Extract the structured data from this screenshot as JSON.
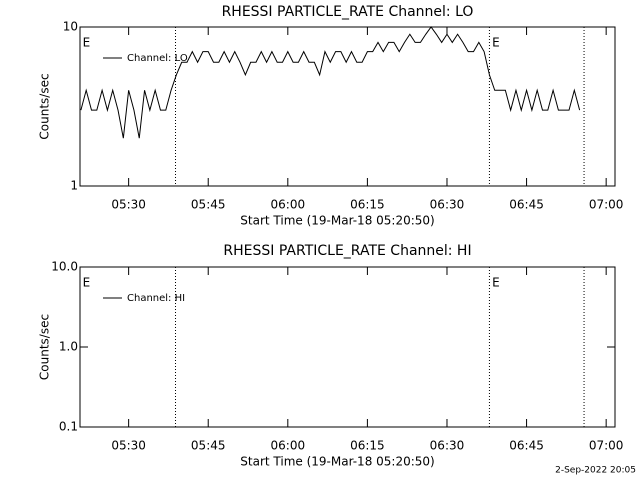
{
  "chart_data": [
    {
      "type": "line",
      "title": "RHESSI PARTICLE_RATE Channel: LO",
      "xlabel": "Start Time (19-Mar-18 05:20:50)",
      "ylabel": "Counts/sec",
      "log_y": true,
      "ylim": [
        1,
        10
      ],
      "yticks": [
        1,
        10
      ],
      "xlim": [
        "05:20:50",
        "07:01:40"
      ],
      "xticks": [
        "05:30",
        "05:45",
        "06:00",
        "06:15",
        "06:30",
        "06:45",
        "07:00"
      ],
      "vlines": [
        "05:38:50",
        "06:38:00",
        "06:55:50"
      ],
      "annotations": [
        {
          "text": "E",
          "x": "05:21:20"
        },
        {
          "text": "E",
          "x": "06:38:30"
        }
      ],
      "legend": "upper left",
      "x": [
        "05:21",
        "05:22",
        "05:23",
        "05:24",
        "05:25",
        "05:26",
        "05:27",
        "05:28",
        "05:29",
        "05:30",
        "05:31",
        "05:32",
        "05:33",
        "05:34",
        "05:35",
        "05:36",
        "05:37",
        "05:38",
        "05:39",
        "05:40",
        "05:41",
        "05:42",
        "05:43",
        "05:44",
        "05:45",
        "05:46",
        "05:47",
        "05:48",
        "05:49",
        "05:50",
        "05:51",
        "05:52",
        "05:53",
        "05:54",
        "05:55",
        "05:56",
        "05:57",
        "05:58",
        "05:59",
        "06:00",
        "06:01",
        "06:02",
        "06:03",
        "06:04",
        "06:05",
        "06:06",
        "06:07",
        "06:08",
        "06:09",
        "06:10",
        "06:11",
        "06:12",
        "06:13",
        "06:14",
        "06:15",
        "06:16",
        "06:17",
        "06:18",
        "06:19",
        "06:20",
        "06:21",
        "06:22",
        "06:23",
        "06:24",
        "06:25",
        "06:26",
        "06:27",
        "06:28",
        "06:29",
        "06:30",
        "06:31",
        "06:32",
        "06:33",
        "06:34",
        "06:35",
        "06:36",
        "06:37",
        "06:38",
        "06:39",
        "06:40",
        "06:41",
        "06:42",
        "06:43",
        "06:44",
        "06:45",
        "06:46",
        "06:47",
        "06:48",
        "06:49",
        "06:50",
        "06:51",
        "06:52",
        "06:53",
        "06:54",
        "06:55"
      ],
      "series": [
        {
          "name": "Channel: LO",
          "color": "#000000",
          "values": [
            3,
            4,
            3,
            3,
            4,
            3,
            4,
            3,
            2,
            4,
            3,
            2,
            4,
            3,
            4,
            3,
            3,
            4,
            5,
            6,
            6,
            7,
            6,
            7,
            7,
            6,
            6,
            7,
            6,
            7,
            6,
            5,
            6,
            6,
            7,
            6,
            7,
            6,
            6,
            7,
            6,
            6,
            7,
            6,
            6,
            5,
            7,
            6,
            7,
            7,
            6,
            7,
            6,
            6,
            7,
            7,
            8,
            7,
            8,
            8,
            7,
            8,
            9,
            8,
            8,
            9,
            10,
            9,
            8,
            9,
            8,
            9,
            8,
            7,
            7,
            8,
            7,
            5,
            4,
            4,
            4,
            3,
            4,
            3,
            4,
            3,
            4,
            3,
            3,
            4,
            3,
            3,
            3,
            4,
            3
          ]
        }
      ]
    },
    {
      "type": "line",
      "title": "RHESSI PARTICLE_RATE Channel: HI",
      "xlabel": "Start Time (19-Mar-18 05:20:50)",
      "ylabel": "Counts/sec",
      "log_y": true,
      "ylim": [
        0.1,
        10
      ],
      "yticks": [
        {
          "value": 0.1,
          "label": "0.1"
        },
        {
          "value": 1,
          "label": "1.0"
        },
        {
          "value": 10,
          "label": "10.0"
        }
      ],
      "xlim": [
        "05:20:50",
        "07:01:40"
      ],
      "xticks": [
        "05:30",
        "05:45",
        "06:00",
        "06:15",
        "06:30",
        "06:45",
        "07:00"
      ],
      "vlines": [
        "05:38:50",
        "06:38:00",
        "06:55:50"
      ],
      "annotations": [
        {
          "text": "E",
          "x": "05:21:20"
        },
        {
          "text": "E",
          "x": "06:38:30"
        }
      ],
      "legend": "upper left",
      "x": [],
      "series": [
        {
          "name": "Channel: HI",
          "color": "#000000",
          "values": []
        }
      ]
    }
  ],
  "footer": "2-Sep-2022 20:05"
}
